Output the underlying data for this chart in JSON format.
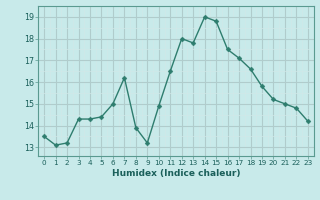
{
  "x": [
    0,
    1,
    2,
    3,
    4,
    5,
    6,
    7,
    8,
    9,
    10,
    11,
    12,
    13,
    14,
    15,
    16,
    17,
    18,
    19,
    20,
    21,
    22,
    23
  ],
  "y": [
    13.5,
    13.1,
    13.2,
    14.3,
    14.3,
    14.4,
    15.0,
    16.2,
    13.9,
    13.2,
    14.9,
    16.5,
    18.0,
    17.8,
    19.0,
    18.8,
    17.5,
    17.1,
    16.6,
    15.8,
    15.2,
    15.0,
    14.8,
    14.2
  ],
  "line_color": "#2e7d6e",
  "marker": "D",
  "marker_size": 2.5,
  "bg_color": "#c8eaea",
  "grid_major_color": "#b0cccc",
  "grid_minor_color": "#d0e8e8",
  "xlabel": "Humidex (Indice chaleur)",
  "ylabel_ticks": [
    13,
    14,
    15,
    16,
    17,
    18,
    19
  ],
  "xlim": [
    -0.5,
    23.5
  ],
  "ylim": [
    12.6,
    19.5
  ],
  "xtick_labels": [
    "0",
    "1",
    "2",
    "3",
    "4",
    "5",
    "6",
    "7",
    "8",
    "9",
    "10",
    "11",
    "12",
    "13",
    "14",
    "15",
    "16",
    "17",
    "18",
    "19",
    "20",
    "21",
    "22",
    "23"
  ]
}
